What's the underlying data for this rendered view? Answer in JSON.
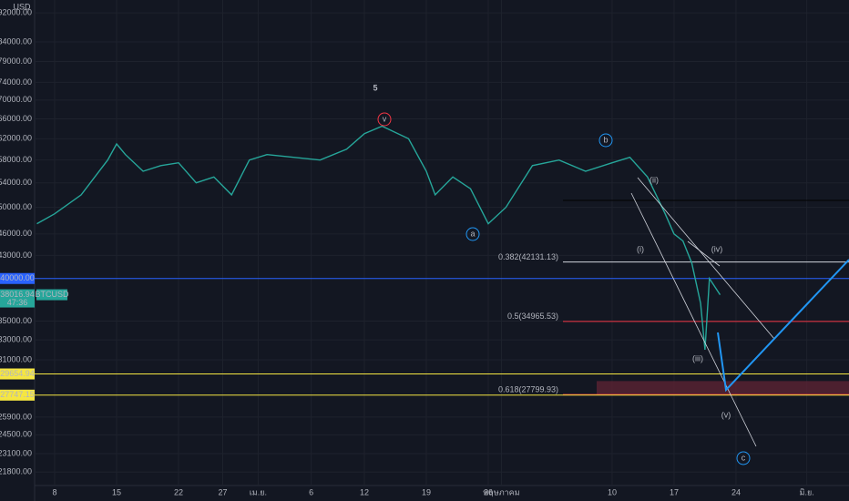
{
  "chart_data": {
    "type": "line",
    "currency": "USD",
    "countdown": "47:36",
    "wave_number": "5",
    "log_scale": true,
    "grid": true,
    "xlim": [
      -2.26,
      89.77
    ],
    "ylim": [
      20900,
      95800
    ],
    "xticks": [
      {
        "value": 0,
        "label": "8"
      },
      {
        "value": 7,
        "label": "15"
      },
      {
        "value": 14,
        "label": "22"
      },
      {
        "value": 19,
        "label": "27"
      },
      {
        "value": 23,
        "label": "เม.ย."
      },
      {
        "value": 29,
        "label": "6"
      },
      {
        "value": 35,
        "label": "12"
      },
      {
        "value": 42,
        "label": "19"
      },
      {
        "value": 49,
        "label": "26"
      },
      {
        "value": 50.5,
        "label": "พฤษภาคม"
      },
      {
        "value": 63,
        "label": "10"
      },
      {
        "value": 70,
        "label": "17"
      },
      {
        "value": 77,
        "label": "24"
      },
      {
        "value": 85,
        "label": "มิ.ย."
      }
    ],
    "yticks": [
      {
        "value": 92000,
        "label": "92000.00"
      },
      {
        "value": 84000,
        "label": "84000.00"
      },
      {
        "value": 79000,
        "label": "79000.00"
      },
      {
        "value": 74000,
        "label": "74000.00"
      },
      {
        "value": 70000,
        "label": "70000.00"
      },
      {
        "value": 66000,
        "label": "66000.00"
      },
      {
        "value": 62000,
        "label": "62000.00"
      },
      {
        "value": 58000,
        "label": "58000.00"
      },
      {
        "value": 54000,
        "label": "54000.00"
      },
      {
        "value": 50000,
        "label": "50000.00"
      },
      {
        "value": 46000,
        "label": "46000.00"
      },
      {
        "value": 43000,
        "label": "43000.00"
      },
      {
        "value": 35000,
        "label": "35000.00"
      },
      {
        "value": 33000,
        "label": "33000.00"
      },
      {
        "value": 31000,
        "label": "31000.00"
      },
      {
        "value": 25900,
        "label": "25900.00"
      },
      {
        "value": 24500,
        "label": "24500.00"
      },
      {
        "value": 23100,
        "label": "23100.00"
      },
      {
        "value": 21800,
        "label": "21800.00"
      }
    ],
    "series": [
      {
        "name": "BTCUSD",
        "color": "#26a69a",
        "x": [
          -2,
          0,
          3,
          6,
          7,
          8,
          10,
          12,
          14,
          16,
          18,
          20,
          22,
          24,
          27,
          30,
          33,
          35,
          37,
          40,
          42,
          43,
          45,
          47,
          49,
          51,
          54,
          57,
          60,
          63,
          65,
          67,
          69,
          70,
          71,
          72,
          73,
          73.5,
          74,
          74.6,
          75.2
        ],
        "values": [
          47500,
          49000,
          52000,
          58000,
          61000,
          59000,
          56000,
          57000,
          57500,
          54000,
          55000,
          52000,
          58000,
          59000,
          58500,
          58000,
          60000,
          63000,
          64500,
          62000,
          56000,
          52000,
          55000,
          53000,
          47500,
          50000,
          57000,
          58000,
          56000,
          57500,
          58500,
          55000,
          49000,
          46000,
          45000,
          42000,
          37000,
          32000,
          40000,
          39000,
          38016.94
        ]
      }
    ],
    "last_price": 38016.94,
    "levels": [
      {
        "value": 40000,
        "label": "40000.00",
        "color": "#2962ff"
      },
      {
        "value": 29654.94,
        "label": "29654.94",
        "color": "#f5e642"
      },
      {
        "value": 27747.15,
        "label": "27747.15",
        "color": "#f5e642"
      }
    ],
    "fib": [
      {
        "value": 42131.13,
        "label": "0.382(42131.13)",
        "color": "#d1d4dc"
      },
      {
        "value": 34965.53,
        "label": "0.5(34965.53)",
        "color": "#f23645"
      },
      {
        "value": 27799.93,
        "label": "0.618(27799.93)",
        "color": "#f23645"
      }
    ],
    "waves": [
      {
        "label": "v",
        "color": "#f23645",
        "circle": true
      },
      {
        "label": "b",
        "color": "#2196f3",
        "circle": true
      },
      {
        "label": "a",
        "color": "#2196f3",
        "circle": true
      },
      {
        "label": "c",
        "color": "#2196f3",
        "circle": true
      },
      {
        "label": "(i)",
        "color": "#4caf50",
        "circle": false
      },
      {
        "label": "(ii)",
        "color": "#4caf50",
        "circle": false
      },
      {
        "label": "(iii)",
        "color": "#4caf50",
        "circle": false
      },
      {
        "label": "(iv)",
        "color": "#4caf50",
        "circle": false
      },
      {
        "label": "(v)",
        "color": "#4caf50",
        "circle": false
      }
    ]
  }
}
